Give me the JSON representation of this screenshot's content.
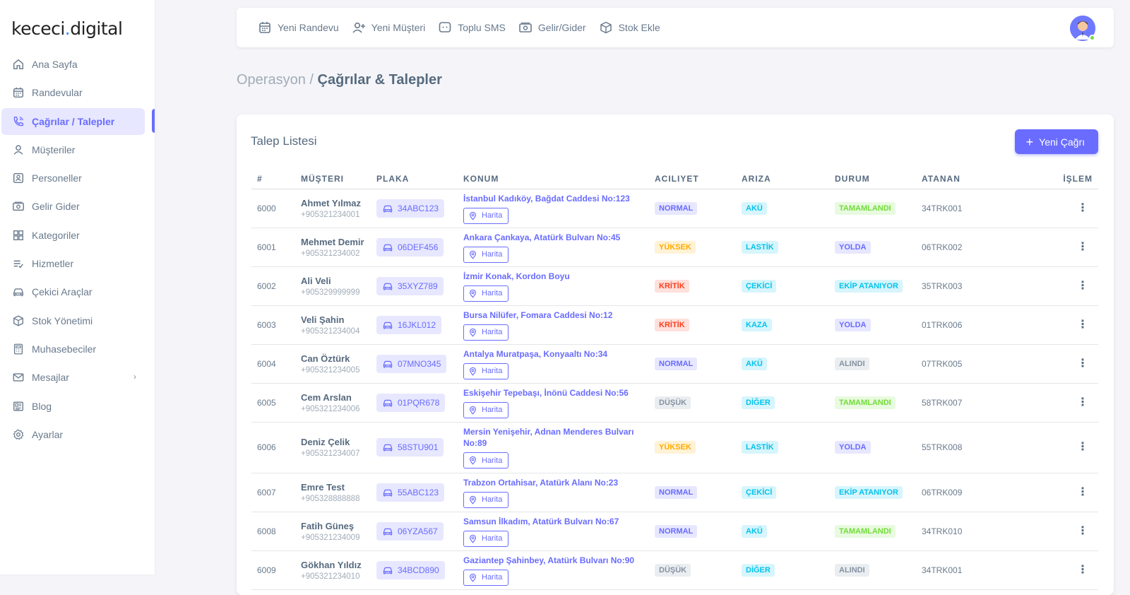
{
  "brand": {
    "name_a": "kececi",
    "name_dot": ".",
    "name_b": "digital"
  },
  "sidebar": {
    "items": [
      {
        "label": "Ana Sayfa",
        "icon": "home-icon"
      },
      {
        "label": "Randevular",
        "icon": "calendar-icon"
      },
      {
        "label": "Çağrılar / Talepler",
        "icon": "phone-call-icon",
        "active": true
      },
      {
        "label": "Müşteriler",
        "icon": "user-icon"
      },
      {
        "label": "Personeller",
        "icon": "id-badge-icon"
      },
      {
        "label": "Gelir Gider",
        "icon": "money-icon"
      },
      {
        "label": "Kategoriler",
        "icon": "grid-icon"
      },
      {
        "label": "Hizmetler",
        "icon": "list-check-icon"
      },
      {
        "label": "Çekici Araçlar",
        "icon": "car-icon"
      },
      {
        "label": "Stok Yönetimi",
        "icon": "cube-icon"
      },
      {
        "label": "Muhasebeciler",
        "icon": "calculator-icon"
      },
      {
        "label": "Mesajlar",
        "icon": "envelope-icon",
        "has_children": true
      },
      {
        "label": "Blog",
        "icon": "newspaper-icon"
      },
      {
        "label": "Ayarlar",
        "icon": "cog-icon"
      }
    ]
  },
  "navbar": {
    "shortcuts": [
      {
        "label": "Yeni Randevu",
        "icon": "calendar-icon"
      },
      {
        "label": "Yeni Müşteri",
        "icon": "user-plus-icon"
      },
      {
        "label": "Toplu SMS",
        "icon": "chat-icon"
      },
      {
        "label": "Gelir/Gider",
        "icon": "money-icon"
      },
      {
        "label": "Stok Ekle",
        "icon": "cube-icon"
      }
    ]
  },
  "breadcrumb": {
    "parent": "Operasyon",
    "separator": "/",
    "current": "Çağrılar & Talepler"
  },
  "card": {
    "title": "Talep Listesi",
    "new_button": "Yeni Çağrı",
    "map_label": "Harita",
    "columns": [
      "#",
      "Müşteri",
      "Plaka",
      "Konum",
      "Aciliyet",
      "Arıza",
      "Durum",
      "Atanan",
      "İşlem"
    ],
    "rows": [
      {
        "id": "6000",
        "name": "Ahmet Yılmaz",
        "phone": "+905321234001",
        "plate": "34ABC123",
        "location": "İstanbul Kadıköy, Bağdat Caddesi No:123",
        "urgency": "NORMAL",
        "urgency_type": "normal",
        "fault": "AKÜ",
        "status": "TAMAMLANDI",
        "status_type": "success",
        "assigned": "34TRK001"
      },
      {
        "id": "6001",
        "name": "Mehmet Demir",
        "phone": "+905321234002",
        "plate": "06DEF456",
        "location": "Ankara Çankaya, Atatürk Bulvarı No:45",
        "urgency": "YÜKSEK",
        "urgency_type": "yuksek",
        "fault": "LASTİK",
        "status": "YOLDA",
        "status_type": "normal",
        "assigned": "06TRK002"
      },
      {
        "id": "6002",
        "name": "Ali Veli",
        "phone": "+905329999999",
        "plate": "35XYZ789",
        "location": "İzmir Konak, Kordon Boyu",
        "urgency": "KRİTİK",
        "urgency_type": "kritik",
        "fault": "ÇEKİCİ",
        "status": "EKİP ATANIYOR",
        "status_type": "info",
        "assigned": "35TRK003"
      },
      {
        "id": "6003",
        "name": "Veli Şahin",
        "phone": "+905321234004",
        "plate": "16JKL012",
        "location": "Bursa Nilüfer, Fomara Caddesi No:12",
        "urgency": "KRİTİK",
        "urgency_type": "kritik",
        "fault": "KAZA",
        "status": "YOLDA",
        "status_type": "normal",
        "assigned": "01TRK006"
      },
      {
        "id": "6004",
        "name": "Can Öztürk",
        "phone": "+905321234005",
        "plate": "07MNO345",
        "location": "Antalya Muratpaşa, Konyaaltı No:34",
        "urgency": "NORMAL",
        "urgency_type": "normal",
        "fault": "AKÜ",
        "status": "ALINDI",
        "status_type": "alindi",
        "assigned": "07TRK005"
      },
      {
        "id": "6005",
        "name": "Cem Arslan",
        "phone": "+905321234006",
        "plate": "01PQR678",
        "location": "Eskişehir Tepebaşı, İnönü Caddesi No:56",
        "urgency": "DÜŞÜK",
        "urgency_type": "dusuk",
        "fault": "DİĞER",
        "status": "TAMAMLANDI",
        "status_type": "success",
        "assigned": "58TRK007"
      },
      {
        "id": "6006",
        "name": "Deniz Çelik",
        "phone": "+905321234007",
        "plate": "58STU901",
        "location": "Mersin Yenişehir, Adnan Menderes Bulvarı No:89",
        "urgency": "YÜKSEK",
        "urgency_type": "yuksek",
        "fault": "LASTİK",
        "status": "YOLDA",
        "status_type": "normal",
        "assigned": "55TRK008",
        "tall": true
      },
      {
        "id": "6007",
        "name": "Emre Test",
        "phone": "+905328888888",
        "plate": "55ABC123",
        "location": "Trabzon Ortahisar, Atatürk Alanı No:23",
        "urgency": "NORMAL",
        "urgency_type": "normal",
        "fault": "ÇEKİCİ",
        "status": "EKİP ATANIYOR",
        "status_type": "info",
        "assigned": "06TRK009"
      },
      {
        "id": "6008",
        "name": "Fatih Güneş",
        "phone": "+905321234009",
        "plate": "06YZA567",
        "location": "Samsun İlkadım, Atatürk Bulvarı No:67",
        "urgency": "NORMAL",
        "urgency_type": "normal",
        "fault": "AKÜ",
        "status": "TAMAMLANDI",
        "status_type": "success",
        "assigned": "34TRK010"
      },
      {
        "id": "6009",
        "name": "Gökhan Yıldız",
        "phone": "+905321234010",
        "plate": "34BCD890",
        "location": "Gaziantep Şahinbey, Atatürk Bulvarı No:90",
        "urgency": "DÜŞÜK",
        "urgency_type": "dusuk",
        "fault": "DİĞER",
        "status": "ALINDI",
        "status_type": "alindi",
        "assigned": "34TRK001"
      }
    ]
  },
  "colors": {
    "primary": "#696cff",
    "sidebar_active_bg": "#e7e7ff",
    "text": "#566a7f"
  }
}
